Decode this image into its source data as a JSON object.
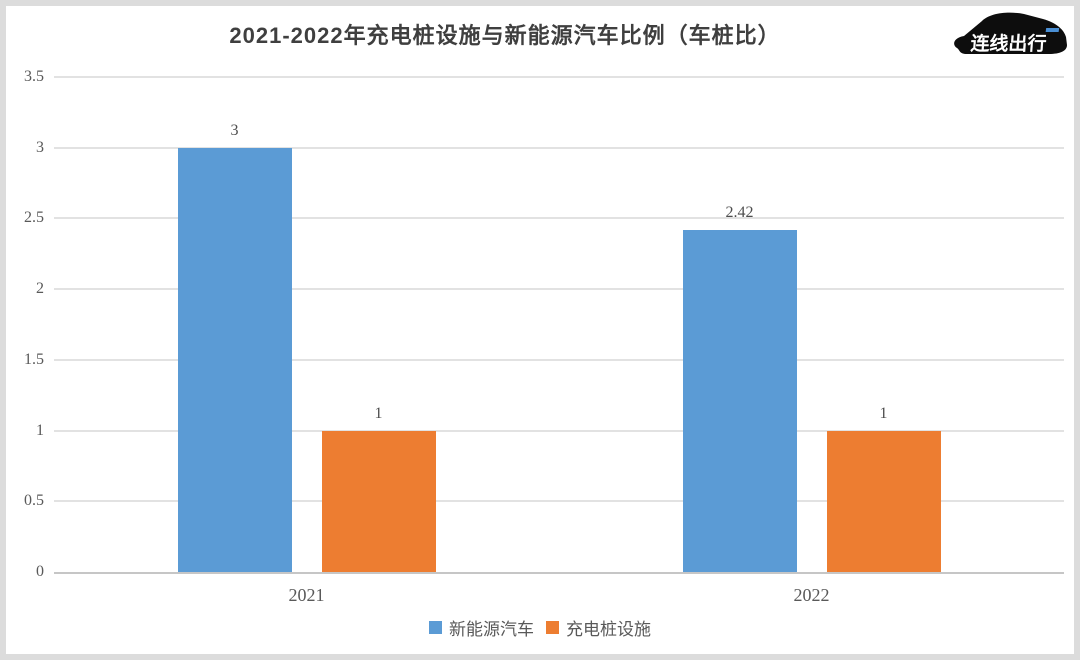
{
  "title": "2021-2022年充电桩设施与新能源汽车比例（车桩比）",
  "logo": {
    "text": "连线出行",
    "body_color": "#0d0d0d",
    "text_color": "#ffffff",
    "accent_color": "#4a8fd4"
  },
  "chart_data": {
    "type": "bar",
    "title": "2021-2022年充电桩设施与新能源汽车比例（车桩比）",
    "categories": [
      "2021",
      "2022"
    ],
    "series": [
      {
        "name": "新能源汽车",
        "color": "#5B9BD5",
        "values": [
          3,
          2.42
        ],
        "data_labels": [
          "3",
          "2.42"
        ]
      },
      {
        "name": "充电桩设施",
        "color": "#ED7D31",
        "values": [
          1,
          1
        ],
        "data_labels": [
          "1",
          "1"
        ]
      }
    ],
    "xlabel": "",
    "ylabel": "",
    "ylim": [
      0,
      3.5
    ],
    "yticks": [
      0,
      0.5,
      1,
      1.5,
      2,
      2.5,
      3,
      3.5
    ],
    "ytick_labels": [
      "0",
      "0.5",
      "1",
      "1.5",
      "2",
      "2.5",
      "3",
      "3.5"
    ],
    "grid": "horizontal",
    "legend_position": "bottom",
    "gridline_color": "#e2e2e2",
    "axis_line_color": "#c6c6c6",
    "text_color": "#595959"
  }
}
